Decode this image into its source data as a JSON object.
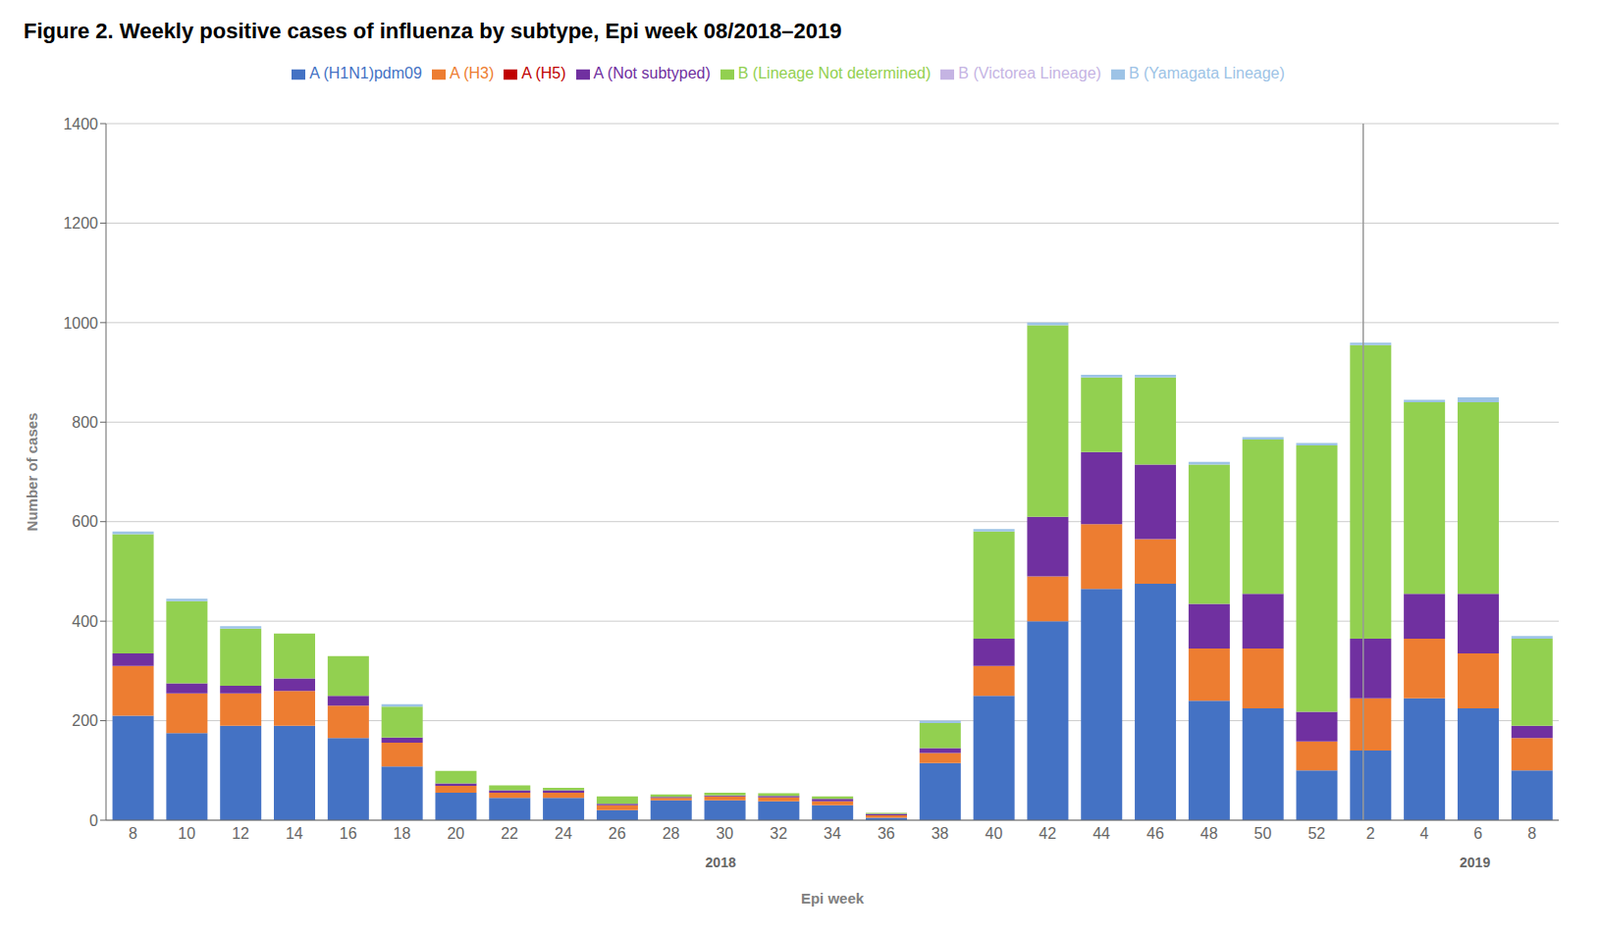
{
  "chart_data": {
    "type": "bar",
    "title": "Figure 2. Weekly positive cases of influenza by subtype, Epi week 08/2018–2019",
    "xlabel": "Epi week",
    "ylabel": "Number of cases",
    "stacked": true,
    "grid": true,
    "legend": "top",
    "categories": [
      "8",
      "10",
      "12",
      "14",
      "16",
      "18",
      "20",
      "22",
      "24",
      "26",
      "28",
      "30",
      "32",
      "34",
      "36",
      "38",
      "40",
      "42",
      "44",
      "46",
      "48",
      "50",
      "52",
      "2",
      "4",
      "6",
      "8"
    ],
    "series": [
      {
        "name": "A (H1N1)pdm09",
        "color": "#4472C4",
        "values": [
          210,
          175,
          190,
          190,
          165,
          108,
          55,
          45,
          45,
          20,
          40,
          40,
          38,
          30,
          5,
          115,
          250,
          400,
          465,
          475,
          240,
          225,
          100,
          140,
          245,
          225,
          100
        ]
      },
      {
        "name": "A (H3)",
        "color": "#ED7D31",
        "values": [
          100,
          80,
          65,
          70,
          65,
          48,
          14,
          10,
          10,
          10,
          5,
          8,
          8,
          8,
          5,
          20,
          60,
          90,
          130,
          90,
          105,
          120,
          58,
          105,
          120,
          110,
          65
        ]
      },
      {
        "name": "A (H5)",
        "color": "#C00000",
        "values": [
          0,
          0,
          0,
          0,
          0,
          0,
          0,
          0,
          0,
          0,
          0,
          0,
          0,
          0,
          0,
          0,
          0,
          0,
          0,
          0,
          0,
          0,
          0,
          0,
          0,
          0,
          0
        ]
      },
      {
        "name": "A (Not subtyped)",
        "color": "#7030A0",
        "values": [
          25,
          20,
          15,
          25,
          20,
          10,
          5,
          5,
          5,
          3,
          2,
          2,
          3,
          5,
          3,
          10,
          55,
          120,
          145,
          150,
          90,
          110,
          60,
          120,
          90,
          120,
          25
        ]
      },
      {
        "name": "B (Lineage Not determined)",
        "color": "#92D050",
        "values": [
          240,
          165,
          115,
          90,
          80,
          62,
          25,
          10,
          5,
          15,
          5,
          5,
          5,
          5,
          2,
          50,
          215,
          385,
          150,
          175,
          280,
          310,
          535,
          590,
          385,
          385,
          175
        ]
      },
      {
        "name": "B (Victorea Lineage)",
        "color": "#C5B4E3",
        "values": [
          0,
          0,
          0,
          0,
          0,
          0,
          0,
          0,
          0,
          0,
          0,
          0,
          0,
          0,
          0,
          0,
          0,
          0,
          0,
          0,
          0,
          0,
          0,
          0,
          0,
          0,
          0
        ]
      },
      {
        "name": "B (Yamagata Lineage)",
        "color": "#9DC3E6",
        "values": [
          5,
          5,
          5,
          0,
          0,
          5,
          0,
          0,
          0,
          0,
          0,
          0,
          0,
          0,
          0,
          5,
          5,
          5,
          5,
          5,
          5,
          5,
          5,
          5,
          5,
          10,
          5
        ]
      }
    ],
    "ylim": [
      0,
      1400
    ],
    "yticks": [
      0,
      200,
      400,
      600,
      800,
      1000,
      1200,
      1400
    ],
    "annotations": [
      {
        "text": "2018",
        "x": 11
      },
      {
        "text": "2019",
        "x": 24.5
      },
      {
        "type": "vline",
        "x": 22.5
      }
    ]
  }
}
